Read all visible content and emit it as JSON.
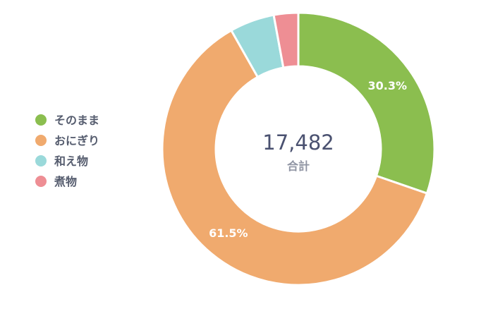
{
  "chart_data": {
    "type": "pie",
    "categories": [
      "そのまま",
      "おにぎり",
      "和え物",
      "煮物"
    ],
    "values": [
      30.3,
      61.5,
      5.3,
      2.9
    ],
    "value_labels": [
      "30.3%",
      "61.5%",
      "",
      ""
    ],
    "colors": [
      "#8bbe4f",
      "#f0aa6e",
      "#9ad9da",
      "#ee8e94"
    ],
    "center": {
      "value": "17,482",
      "caption": "合計"
    },
    "legend": "left"
  }
}
